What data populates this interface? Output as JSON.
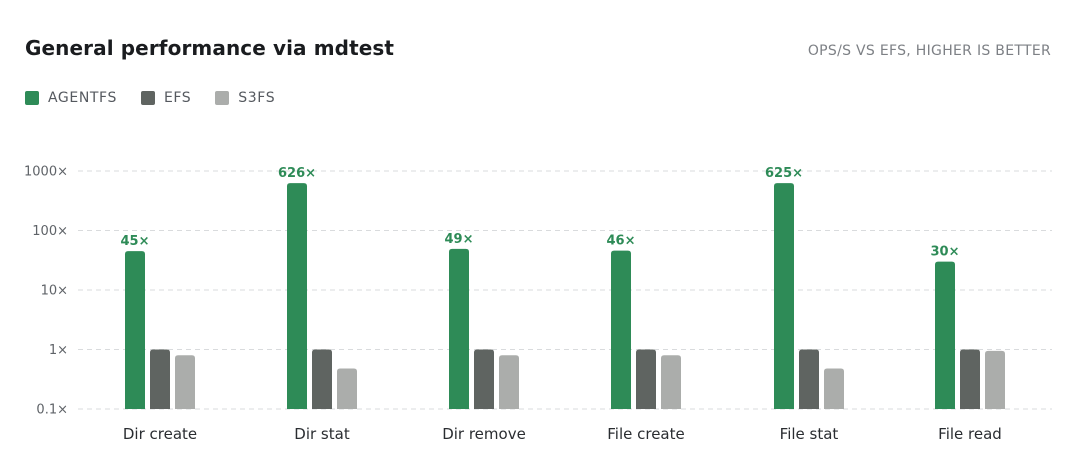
{
  "header": {
    "title": "General performance via mdtest",
    "subtitle": "OPS/S VS EFS, HIGHER IS BETTER"
  },
  "legend": [
    {
      "label": "AGENTFS",
      "color": "#2e8b57"
    },
    {
      "label": "EFS",
      "color": "#5f6461"
    },
    {
      "label": "S3FS",
      "color": "#abadab"
    }
  ],
  "chart_data": {
    "type": "bar",
    "title": "General performance via mdtest",
    "subtitle": "OPS/S VS EFS, HIGHER IS BETTER",
    "xlabel": "",
    "ylabel": "",
    "yscale": "log",
    "ylim": [
      0.1,
      1000
    ],
    "yticks": [
      0.1,
      1,
      10,
      100,
      1000
    ],
    "ytick_labels": [
      "0.1×",
      "1×",
      "10×",
      "100×",
      "1000×"
    ],
    "grid": true,
    "legend_position": "top-left",
    "categories": [
      "Dir create",
      "Dir stat",
      "Dir remove",
      "File create",
      "File stat",
      "File read"
    ],
    "series": [
      {
        "name": "AGENTFS",
        "color": "#2e8b57",
        "values": [
          45,
          626,
          49,
          46,
          625,
          30
        ]
      },
      {
        "name": "EFS",
        "color": "#5f6461",
        "values": [
          1,
          1,
          1,
          1,
          1,
          1
        ]
      },
      {
        "name": "S3FS",
        "color": "#abadab",
        "values": [
          0.8,
          0.48,
          0.8,
          0.8,
          0.48,
          0.95
        ]
      }
    ],
    "data_labels": [
      "45×",
      "626×",
      "49×",
      "46×",
      "625×",
      "30×"
    ],
    "data_label_color": "#2e8b57"
  }
}
